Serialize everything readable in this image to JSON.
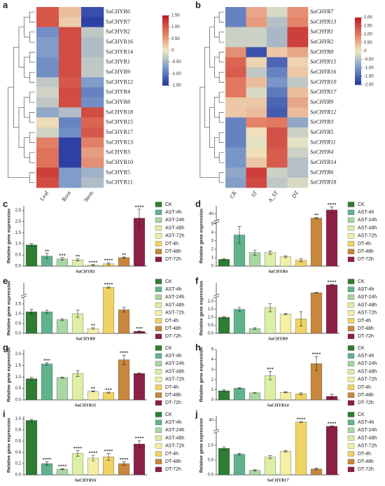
{
  "chart_data": [
    {
      "type": "heatmap",
      "panel": "a",
      "rows": [
        "SaCHYR6",
        "SaCHYR7",
        "SaCHYR2",
        "SaCHYR16",
        "SaCHYR14",
        "SaCHYR1",
        "SaCHYR9",
        "SaCHYR12",
        "SaCHYR4",
        "SaCHYR8",
        "SaCHYR18",
        "SaCHYR15",
        "SaCHYR17",
        "SaCHYR13",
        "SaCHYR3",
        "SaCHYR10",
        "SaCHYR5",
        "SaCHYR11"
      ],
      "columns": [
        "Leaf",
        "Root",
        "Stem"
      ],
      "values": [
        [
          1.0,
          0.3,
          -1.3
        ],
        [
          1.0,
          0.2,
          -1.4
        ],
        [
          -0.8,
          1.1,
          -0.3
        ],
        [
          -0.7,
          1.1,
          -0.4
        ],
        [
          -0.7,
          1.1,
          -0.4
        ],
        [
          -0.8,
          1.1,
          -0.3
        ],
        [
          -0.8,
          1.1,
          -0.3
        ],
        [
          -0.3,
          1.0,
          -0.7
        ],
        [
          -0.2,
          1.1,
          -0.9
        ],
        [
          -0.3,
          1.1,
          -0.8
        ],
        [
          -0.6,
          -0.4,
          1.1
        ],
        [
          0.1,
          -0.9,
          0.9
        ],
        [
          -0.2,
          -0.8,
          1.0
        ],
        [
          0.7,
          -1.4,
          0.7
        ],
        [
          0.8,
          -1.4,
          0.5
        ],
        [
          0.8,
          -1.4,
          0.6
        ],
        [
          1.2,
          -0.7,
          -0.5
        ],
        [
          1.1,
          -0.7,
          -0.4
        ]
      ],
      "vlim": [
        -1.5,
        1.5
      ],
      "colorbar_ticks": [
        {
          "value": 1.5,
          "label": "1.50"
        },
        {
          "value": 1.0,
          "label": "1.00"
        },
        {
          "value": 0.5,
          "label": "0.50"
        },
        0,
        {
          "value": -0.5,
          "label": "-0.50"
        },
        {
          "value": -1.0,
          "label": "-1.00"
        },
        {
          "value": -1.5,
          "label": "-1.50"
        }
      ],
      "italic_rows": false
    },
    {
      "type": "heatmap",
      "panel": "b",
      "rows": [
        "SaCHYR7",
        "SaCHYR13",
        "SaCHYR1",
        "SaCHYR2",
        "SaCHYR8",
        "SaCHYR15",
        "SaCHYR16",
        "SaCHYR10",
        "SaCHYR17",
        "SaCHYR9",
        "SaCHYR12",
        "SaCHYR3",
        "SaCHYR5",
        "SaCHYR11",
        "SaCHYR4",
        "SaCHYR14",
        "SaCHYR6",
        "SaCHYR18"
      ],
      "columns": [
        "CK",
        "ST",
        "A_ST",
        "DT"
      ],
      "values": [
        [
          -1.2,
          0.6,
          -0.2,
          0.8
        ],
        [
          -1.2,
          0.7,
          -0.5,
          0.9
        ],
        [
          -0.3,
          -0.3,
          -0.6,
          1.6
        ],
        [
          -0.3,
          -0.3,
          -0.6,
          1.6
        ],
        [
          0.8,
          -1.7,
          0.3,
          0.6
        ],
        [
          1.2,
          0.2,
          -1.5,
          0.2
        ],
        [
          1.3,
          -0.4,
          -1.2,
          0.3
        ],
        [
          1.0,
          0.4,
          -1.0,
          -0.4
        ],
        [
          1.0,
          -0.2,
          -1.3,
          0.4
        ],
        [
          0.3,
          0.3,
          -1.5,
          0.6
        ],
        [
          0.3,
          0.4,
          -1.6,
          0.4
        ],
        [
          -1.2,
          0.9,
          1.0,
          -0.8
        ],
        [
          -1.2,
          0.1,
          1.4,
          -0.3
        ],
        [
          -1.2,
          -0.1,
          1.4,
          -0.1
        ],
        [
          -1.0,
          0.1,
          1.3,
          -0.3
        ],
        [
          -1.0,
          0.3,
          1.3,
          -0.5
        ],
        [
          -0.8,
          1.6,
          -0.3,
          -0.5
        ],
        [
          -0.9,
          1.5,
          -0.4,
          -0.2
        ]
      ],
      "vlim": [
        -2,
        2
      ],
      "colorbar_ticks": [
        {
          "value": 2,
          "label": "2.00"
        },
        {
          "value": 1.5,
          "label": "1.50"
        },
        {
          "value": 1,
          "label": "1.00"
        },
        {
          "value": 0.5,
          "label": "0.50"
        },
        0,
        {
          "value": -0.5,
          "label": "-0.50"
        },
        {
          "value": -1,
          "label": "-1.00"
        },
        {
          "value": -1.5,
          "label": "-1.50"
        },
        {
          "value": -2,
          "label": "-2.00"
        }
      ],
      "italic_rows": true
    },
    {
      "type": "bar",
      "panel": "c",
      "xlabel": "SaCHYR1",
      "ylabel": "Relative gene expression",
      "categories": [
        "CK",
        "AST-4h",
        "AST-24h",
        "AST-48h",
        "AST-72h",
        "DT-4h",
        "DT-48h",
        "DT-72h"
      ],
      "colors": [
        "#2e7d32",
        "#5fb38c",
        "#a9d7a3",
        "#dcefa4",
        "#f3f0a6",
        "#efd465",
        "#c7873c",
        "#8c1f45"
      ],
      "values": [
        0.95,
        0.45,
        0.32,
        0.28,
        0.05,
        0.1,
        0.38,
        2.15
      ],
      "errors": [
        0.06,
        0.12,
        0.06,
        0.05,
        0.02,
        0.05,
        0.03,
        0.4
      ],
      "significance": [
        null,
        "**",
        "***",
        "**",
        "****",
        "****",
        "**",
        "****"
      ],
      "ylim": [
        0,
        2.7
      ],
      "yticks": [
        {
          "value": 0,
          "label": "0.0"
        },
        {
          "value": 0.5,
          "label": "0.5"
        },
        {
          "value": 1,
          "label": "1.0"
        },
        {
          "value": 1.5,
          "label": "1.5"
        },
        {
          "value": 2,
          "label": "2.0"
        },
        {
          "value": 2.5,
          "label": "2.5"
        }
      ]
    },
    {
      "type": "bar",
      "panel": "d",
      "xlabel": "SaCHYR4",
      "ylabel": "Relative gene expression",
      "categories": [
        "CK",
        "AST-4h",
        "AST-24h",
        "AST-48h",
        "AST-72h",
        "DT-4h",
        "DT-48h",
        "DT-72h"
      ],
      "colors": [
        "#2e7d32",
        "#5fb38c",
        "#a9d7a3",
        "#dcefa4",
        "#f3f0a6",
        "#efd465",
        "#c7873c",
        "#8c1f45"
      ],
      "values": [
        0.8,
        3.7,
        1.6,
        1.6,
        1.1,
        0.7,
        36,
        44
      ],
      "errors": [
        0.1,
        1.0,
        0.3,
        0.2,
        0.1,
        0.2,
        0.5,
        3
      ],
      "significance": [
        null,
        null,
        null,
        null,
        null,
        null,
        "**",
        "****"
      ],
      "ylim": [
        0,
        48
      ],
      "ybreak": [
        5,
        35
      ],
      "yticks": [
        0,
        1,
        2,
        3,
        4,
        5,
        40
      ]
    },
    {
      "type": "bar",
      "panel": "e",
      "xlabel": "SaCHYR8",
      "ylabel": "Relative gene expression",
      "categories": [
        "CK",
        "AST-4h",
        "AST-24h",
        "AST-48h",
        "AST-72h",
        "DT-4h",
        "DT-48h",
        "DT-72h"
      ],
      "colors": [
        "#2e7d32",
        "#5fb38c",
        "#a9d7a3",
        "#dcefa4",
        "#f3f0a6",
        "#efd465",
        "#c7873c",
        "#8c1f45"
      ],
      "values": [
        1.1,
        1.1,
        0.7,
        1.0,
        0.25,
        15,
        1.2,
        0.1
      ],
      "errors": [
        0.12,
        0.08,
        0.05,
        0.18,
        0.04,
        0.3,
        0.12,
        0.03
      ],
      "significance": [
        null,
        null,
        null,
        null,
        "**",
        "****",
        null,
        "***"
      ],
      "ylim": [
        0,
        17
      ],
      "ybreak": [
        1.8,
        12
      ],
      "yticks": [
        {
          "value": 0,
          "label": "0.0"
        },
        {
          "value": 0.5,
          "label": "0.5"
        },
        {
          "value": 1,
          "label": "1.0"
        },
        {
          "value": 1.5,
          "label": "1.5"
        }
      ]
    },
    {
      "type": "bar",
      "panel": "f",
      "xlabel": "SaCHYR9",
      "ylabel": "Relative gene expression",
      "categories": [
        "CK",
        "AST-4h",
        "AST-24h",
        "AST-48h",
        "AST-72h",
        "DT-4h",
        "DT-48h",
        "DT-72h"
      ],
      "colors": [
        "#2e7d32",
        "#5fb38c",
        "#a9d7a3",
        "#dcefa4",
        "#f3f0a6",
        "#efd465",
        "#c7873c",
        "#8c1f45"
      ],
      "values": [
        1.0,
        1.5,
        0.3,
        1.6,
        1.2,
        0.9,
        10,
        22
      ],
      "errors": [
        0.05,
        0.12,
        0.05,
        0.25,
        0.05,
        0.45,
        0.4,
        0.8
      ],
      "significance": [
        null,
        null,
        null,
        null,
        null,
        null,
        null,
        "****"
      ],
      "ylim": [
        0,
        25
      ],
      "ybreak": [
        2.2,
        8
      ],
      "yticks": [
        {
          "value": 0,
          "label": "0.0"
        },
        {
          "value": 0.5,
          "label": "0.5"
        },
        {
          "value": 1,
          "label": "1.0"
        },
        {
          "value": 1.5,
          "label": "1.5"
        },
        {
          "value": 2,
          "label": "2.0"
        }
      ]
    },
    {
      "type": "bar",
      "panel": "g",
      "xlabel": "SaCHYR11",
      "ylabel": "Relative gene expression",
      "categories": [
        "CK",
        "AST-4h",
        "AST-24h",
        "AST-48h",
        "AST-72h",
        "DT-4h",
        "DT-48h",
        "DT-72h"
      ],
      "colors": [
        "#2e7d32",
        "#5fb38c",
        "#a9d7a3",
        "#dcefa4",
        "#f3f0a6",
        "#efd465",
        "#c7873c",
        "#8c1f45"
      ],
      "values": [
        0.92,
        1.57,
        0.97,
        1.15,
        0.37,
        0.32,
        1.75,
        1.15
      ],
      "errors": [
        0.06,
        0.05,
        0.02,
        0.12,
        0.02,
        0.02,
        0.2,
        0.02
      ],
      "significance": [
        null,
        "***",
        null,
        null,
        "**",
        "***",
        "****",
        null
      ],
      "ylim": [
        0,
        2.2
      ],
      "yticks": [
        {
          "value": 0,
          "label": "0.0"
        },
        {
          "value": 0.5,
          "label": "0.5"
        },
        {
          "value": 1,
          "label": "1.0"
        },
        {
          "value": 1.5,
          "label": "1.5"
        },
        {
          "value": 2,
          "label": "2.0"
        }
      ]
    },
    {
      "type": "bar",
      "panel": "h",
      "xlabel": "SaCHYR14",
      "ylabel": "Relative gene expression",
      "categories": [
        "CK",
        "AST-4h",
        "AST-24h",
        "AST-48h",
        "AST-72h",
        "DT-4h",
        "DT-48h",
        "DT-72h"
      ],
      "colors": [
        "#2e7d32",
        "#5fb38c",
        "#a9d7a3",
        "#dcefa4",
        "#f3f0a6",
        "#efd465",
        "#c7873c",
        "#8c1f45"
      ],
      "values": [
        0.9,
        1.15,
        0.7,
        2.4,
        0.75,
        0.6,
        3.6,
        0.35
      ],
      "errors": [
        0.1,
        0.05,
        0.03,
        0.4,
        0.05,
        0.1,
        0.7,
        0.2
      ],
      "significance": [
        null,
        null,
        null,
        "***",
        null,
        null,
        "****",
        null
      ],
      "ylim": [
        0,
        5
      ],
      "yticks": [
        0,
        1,
        2,
        3,
        4,
        5
      ]
    },
    {
      "type": "bar",
      "panel": "i",
      "xlabel": "SaCHYR16",
      "ylabel": "Relative gene expression",
      "categories": [
        "CK",
        "AST-4h",
        "AST-24h",
        "AST-48h",
        "AST-72h",
        "DT-4h",
        "DT-48h",
        "DT-72h"
      ],
      "colors": [
        "#2e7d32",
        "#5fb38c",
        "#a9d7a3",
        "#dcefa4",
        "#f3f0a6",
        "#efd465",
        "#c7873c",
        "#8c1f45"
      ],
      "values": [
        0.97,
        0.2,
        0.1,
        0.38,
        0.3,
        0.32,
        0.2,
        0.55
      ],
      "errors": [
        0.02,
        0.03,
        0.01,
        0.05,
        0.05,
        0.06,
        0.03,
        0.06
      ],
      "significance": [
        null,
        "****",
        "****",
        "****",
        "****",
        "****",
        "****",
        "****"
      ],
      "ylim": [
        0,
        1.05
      ],
      "yticks": [
        {
          "value": 0,
          "label": "0.0"
        },
        {
          "value": 0.2,
          "label": "0.2"
        },
        {
          "value": 0.4,
          "label": "0.4"
        },
        {
          "value": 0.6,
          "label": "0.6"
        },
        {
          "value": 0.8,
          "label": "0.8"
        },
        {
          "value": 1,
          "label": "1.0"
        }
      ]
    },
    {
      "type": "bar",
      "panel": "j",
      "xlabel": "SaCHYR17",
      "ylabel": "Relative gene expression",
      "categories": [
        "CK",
        "AST-4h",
        "AST-24h",
        "AST-48h",
        "AST-72h",
        "DT-4h",
        "DT-48h",
        "DT-72h"
      ],
      "colors": [
        "#2e7d32",
        "#5fb38c",
        "#a9d7a3",
        "#dcefa4",
        "#f3f0a6",
        "#efd465",
        "#c7873c",
        "#8c1f45"
      ],
      "values": [
        0.9,
        0.7,
        0.15,
        0.6,
        0.8,
        38,
        0.2,
        33
      ],
      "errors": [
        0.05,
        0.03,
        0.02,
        0.05,
        0.03,
        0.5,
        0.03,
        0.5
      ],
      "significance": [
        null,
        null,
        null,
        null,
        null,
        "****",
        null,
        "****"
      ],
      "ylim": [
        0,
        45
      ],
      "ybreak": [
        1.4,
        30
      ],
      "yticks": [
        {
          "value": 0,
          "label": "0.0"
        },
        {
          "value": 0.5,
          "label": "0.5"
        },
        {
          "value": 1,
          "label": "1.0"
        },
        40
      ]
    }
  ]
}
